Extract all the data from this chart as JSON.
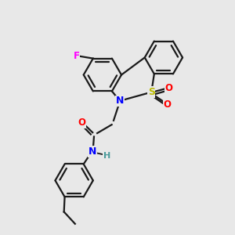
{
  "bg_color": "#e8e8e8",
  "bond_color": "#1a1a1a",
  "atom_colors": {
    "N": "#0000ff",
    "O": "#ff0000",
    "S": "#bbbb00",
    "F": "#ff00ff",
    "H": "#4a9a9a"
  },
  "figsize": [
    3.0,
    3.0
  ],
  "dpi": 100,
  "lw": 1.6,
  "ring_r": 0.082
}
